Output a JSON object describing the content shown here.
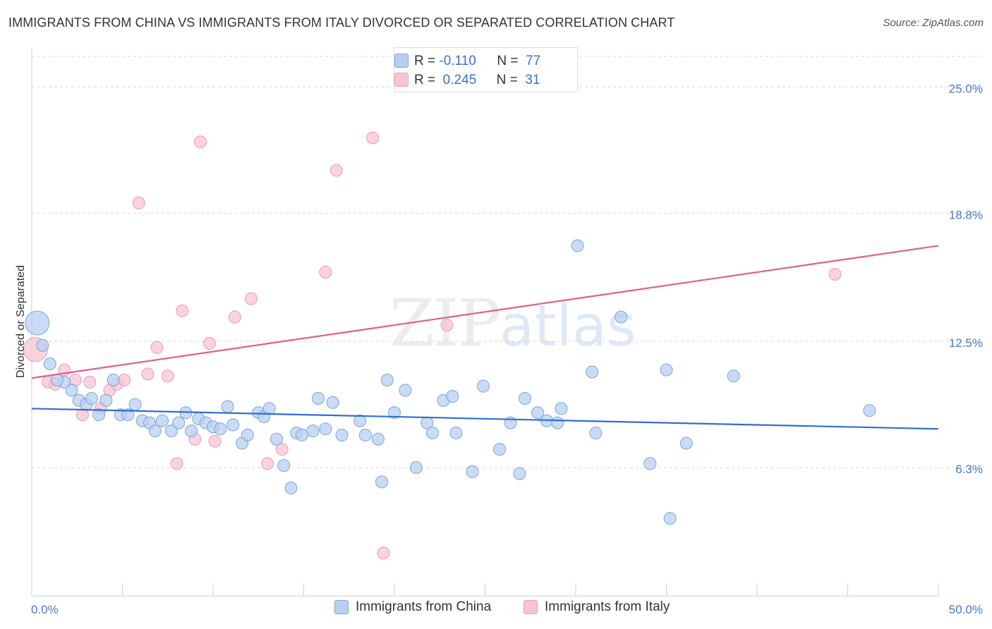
{
  "title": "IMMIGRANTS FROM CHINA VS IMMIGRANTS FROM ITALY DIVORCED OR SEPARATED CORRELATION CHART",
  "source": "Source: ZipAtlas.com",
  "watermark": {
    "zip": "ZIP",
    "atlas": "atlas"
  },
  "legend": {
    "r_label": "R =",
    "n_label": "N =",
    "china": {
      "r": "-0.110",
      "n": "77"
    },
    "italy": {
      "r": "0.245",
      "n": "31"
    }
  },
  "colors": {
    "china_fill": "#b8d0f0",
    "china_stroke": "#7aa3e0",
    "china_line": "#2f6fd0",
    "italy_fill": "#f8c4d4",
    "italy_stroke": "#ec9ab4",
    "italy_line": "#e0608a",
    "grid": "#d8d8d8",
    "tick_label": "#4a78c8"
  },
  "chart_data": {
    "type": "scatter",
    "ylabel": "Divorced or Separated",
    "xlim": [
      0,
      50
    ],
    "ylim": [
      0,
      26.5
    ],
    "x_tick_labels": [
      "0.0%",
      "50.0%"
    ],
    "y_ticks": [
      6.3,
      12.5,
      18.8,
      25.0
    ],
    "y_tick_labels": [
      "6.3%",
      "12.5%",
      "18.8%",
      "25.0%"
    ],
    "grid": "horizontal dashed",
    "series": [
      {
        "name": "Immigrants from China",
        "trend": [
          [
            0,
            9.2
          ],
          [
            50,
            8.2
          ]
        ],
        "points": [
          [
            0.3,
            13.4,
            "large"
          ],
          [
            0.6,
            12.3
          ],
          [
            1.0,
            11.4
          ],
          [
            1.8,
            10.5
          ],
          [
            2.2,
            10.1
          ],
          [
            2.6,
            9.6
          ],
          [
            3.0,
            9.4
          ],
          [
            3.3,
            9.7
          ],
          [
            3.7,
            8.9
          ],
          [
            4.1,
            9.6
          ],
          [
            4.5,
            10.6
          ],
          [
            4.9,
            8.9
          ],
          [
            5.3,
            8.9
          ],
          [
            5.7,
            9.4
          ],
          [
            6.1,
            8.6
          ],
          [
            6.5,
            8.5
          ],
          [
            6.8,
            8.1
          ],
          [
            7.2,
            8.6
          ],
          [
            7.7,
            8.1
          ],
          [
            8.1,
            8.5
          ],
          [
            8.5,
            9.0
          ],
          [
            8.8,
            8.1
          ],
          [
            9.2,
            8.7
          ],
          [
            9.6,
            8.5
          ],
          [
            10.0,
            8.3
          ],
          [
            10.4,
            8.2
          ],
          [
            10.8,
            9.3
          ],
          [
            11.1,
            8.4
          ],
          [
            11.6,
            7.5
          ],
          [
            11.9,
            7.9
          ],
          [
            12.5,
            9.0
          ],
          [
            12.8,
            8.8
          ],
          [
            13.1,
            9.2
          ],
          [
            13.5,
            7.7
          ],
          [
            13.9,
            6.4
          ],
          [
            14.3,
            5.3
          ],
          [
            14.6,
            8.0
          ],
          [
            14.9,
            7.9
          ],
          [
            15.5,
            8.1
          ],
          [
            15.8,
            9.7
          ],
          [
            16.2,
            8.2
          ],
          [
            16.6,
            9.5
          ],
          [
            17.1,
            7.9
          ],
          [
            18.1,
            8.6
          ],
          [
            18.4,
            7.9
          ],
          [
            19.1,
            7.7
          ],
          [
            19.3,
            5.6
          ],
          [
            19.6,
            10.6
          ],
          [
            20.0,
            9.0
          ],
          [
            20.6,
            10.1
          ],
          [
            21.2,
            6.3
          ],
          [
            21.8,
            8.5
          ],
          [
            22.1,
            8.0
          ],
          [
            22.7,
            9.6
          ],
          [
            23.2,
            9.8
          ],
          [
            23.4,
            8.0
          ],
          [
            24.3,
            6.1
          ],
          [
            24.9,
            10.3
          ],
          [
            25.8,
            7.2
          ],
          [
            26.4,
            8.5
          ],
          [
            26.9,
            6.0
          ],
          [
            27.2,
            9.7
          ],
          [
            27.9,
            9.0
          ],
          [
            28.4,
            8.6
          ],
          [
            29.0,
            8.5
          ],
          [
            29.2,
            9.2
          ],
          [
            30.1,
            17.2
          ],
          [
            30.9,
            11.0
          ],
          [
            31.1,
            8.0
          ],
          [
            32.5,
            13.7
          ],
          [
            34.1,
            6.5
          ],
          [
            35.0,
            11.1
          ],
          [
            36.1,
            7.5
          ],
          [
            38.7,
            10.8
          ],
          [
            35.2,
            3.8
          ],
          [
            46.2,
            9.1
          ],
          [
            1.4,
            10.6
          ]
        ]
      },
      {
        "name": "Immigrants from Italy",
        "trend": [
          [
            0,
            10.7
          ],
          [
            50,
            17.2
          ]
        ],
        "points": [
          [
            0.2,
            12.1,
            "large"
          ],
          [
            0.9,
            10.5
          ],
          [
            1.3,
            10.4
          ],
          [
            1.8,
            11.1
          ],
          [
            2.4,
            10.6
          ],
          [
            2.8,
            8.9
          ],
          [
            3.2,
            10.5
          ],
          [
            3.8,
            9.2
          ],
          [
            4.3,
            10.1
          ],
          [
            4.7,
            10.4
          ],
          [
            5.1,
            10.6
          ],
          [
            5.9,
            19.3
          ],
          [
            6.4,
            10.9
          ],
          [
            6.9,
            12.2
          ],
          [
            7.5,
            10.8
          ],
          [
            8.0,
            6.5
          ],
          [
            8.3,
            14.0
          ],
          [
            9.0,
            7.7
          ],
          [
            9.3,
            22.3
          ],
          [
            9.8,
            12.4
          ],
          [
            10.1,
            7.6
          ],
          [
            11.2,
            13.7
          ],
          [
            12.1,
            14.6
          ],
          [
            13.0,
            6.5
          ],
          [
            13.8,
            7.2
          ],
          [
            16.2,
            15.9
          ],
          [
            16.8,
            20.9
          ],
          [
            18.8,
            22.5
          ],
          [
            19.4,
            2.1
          ],
          [
            22.9,
            13.3
          ],
          [
            44.3,
            15.8
          ]
        ]
      }
    ]
  },
  "bottom_legend": {
    "china": "Immigrants from China",
    "italy": "Immigrants from Italy"
  }
}
